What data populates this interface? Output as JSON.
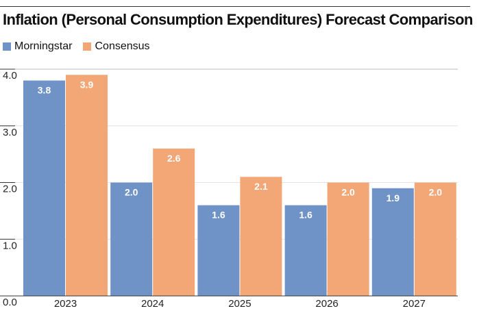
{
  "chart_data": {
    "type": "bar",
    "title": "Inflation (Personal Consumption Expenditures) Forecast Comparison",
    "categories": [
      "2023",
      "2024",
      "2025",
      "2026",
      "2027"
    ],
    "series": [
      {
        "name": "Morningstar",
        "values": [
          3.8,
          2.0,
          1.6,
          1.6,
          1.9
        ],
        "labels": [
          "3.8",
          "2.0",
          "1.6",
          "1.6",
          "1.9"
        ],
        "color": "#6f93c7"
      },
      {
        "name": "Consensus",
        "values": [
          3.9,
          2.6,
          2.1,
          2.0,
          2.0
        ],
        "labels": [
          "3.9",
          "2.6",
          "2.1",
          "2.0",
          "2.0"
        ],
        "color": "#f3a776"
      }
    ],
    "yticks": [
      "0.0",
      "1.0",
      "2.0",
      "3.0",
      "4.0"
    ],
    "ylim": [
      0,
      4
    ],
    "grid": true,
    "legend": "top-left"
  }
}
